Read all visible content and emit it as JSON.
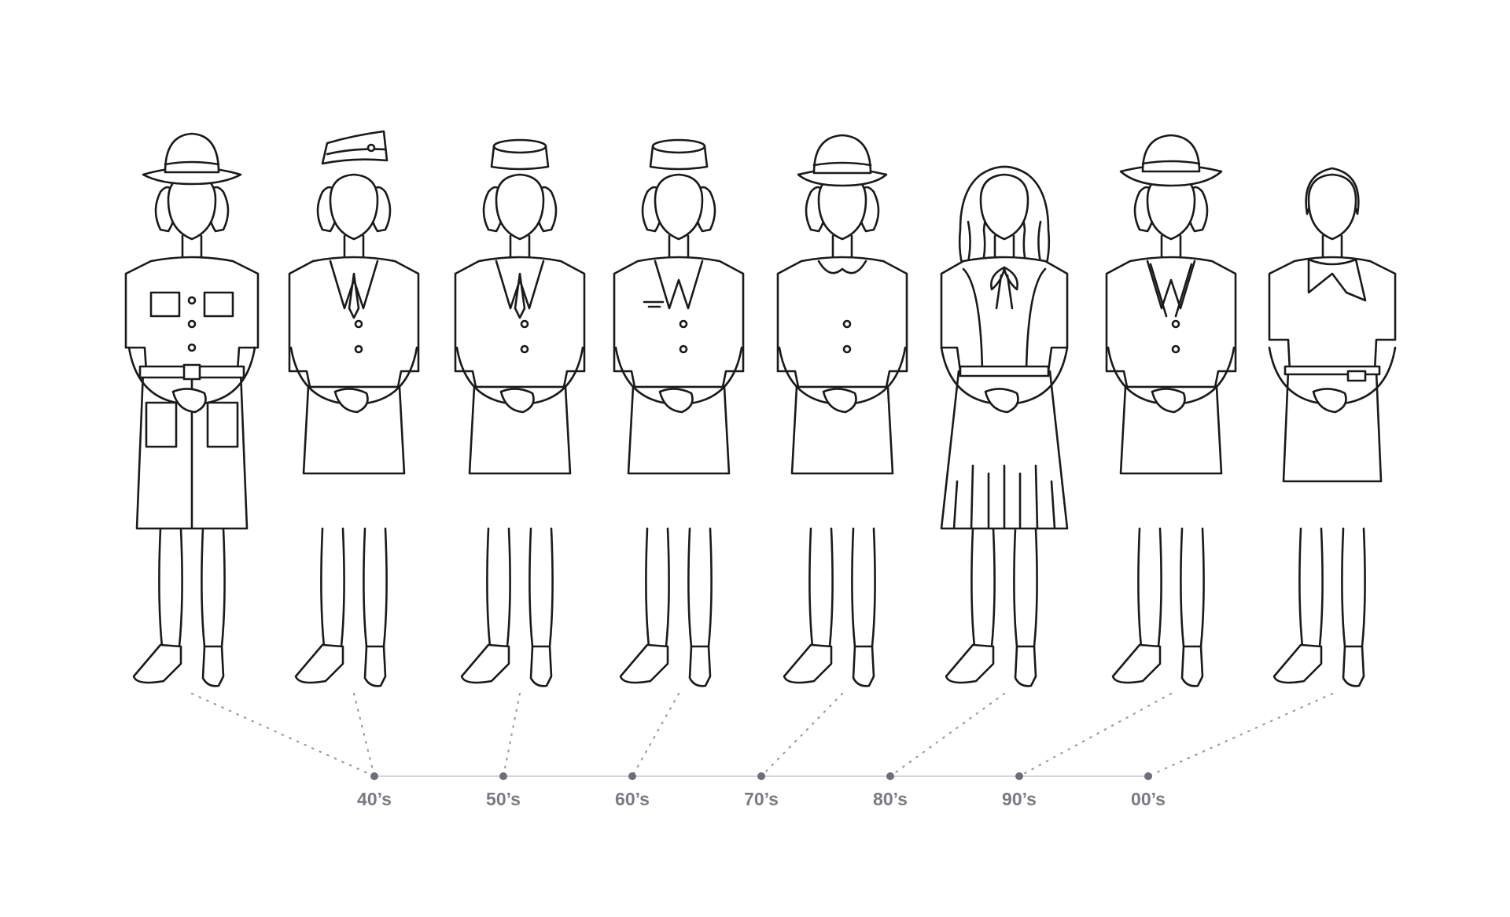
{
  "timeline": {
    "labels": [
      "40’s",
      "50’s",
      "60’s",
      "70’s",
      "80’s",
      "90’s",
      "00’s"
    ]
  },
  "figures": [
    {
      "hat": "bucket-hat",
      "outfit": "belted-dress-with-pockets"
    },
    {
      "hat": "garrison-cap",
      "outfit": "suit-jacket-with-tie"
    },
    {
      "hat": "pillbox-hat",
      "outfit": "suit-jacket-with-tie"
    },
    {
      "hat": "pillbox-hat",
      "outfit": "suit-jacket-with-wing-badge"
    },
    {
      "hat": "bowler-hat",
      "outfit": "round-collar-suit"
    },
    {
      "hat": "none",
      "outfit": "bow-blouse-pleated-dress"
    },
    {
      "hat": "wide-brim-hat",
      "outfit": "double-lapel-suit"
    },
    {
      "hat": "none",
      "outfit": "scarf-dress"
    }
  ],
  "colors": {
    "line_art": "#1a1a1a",
    "connector": "#9b9ba4",
    "axis": "#d4d4dc",
    "axis_dot": "#6e6e7a",
    "label": "#7a7a86"
  }
}
